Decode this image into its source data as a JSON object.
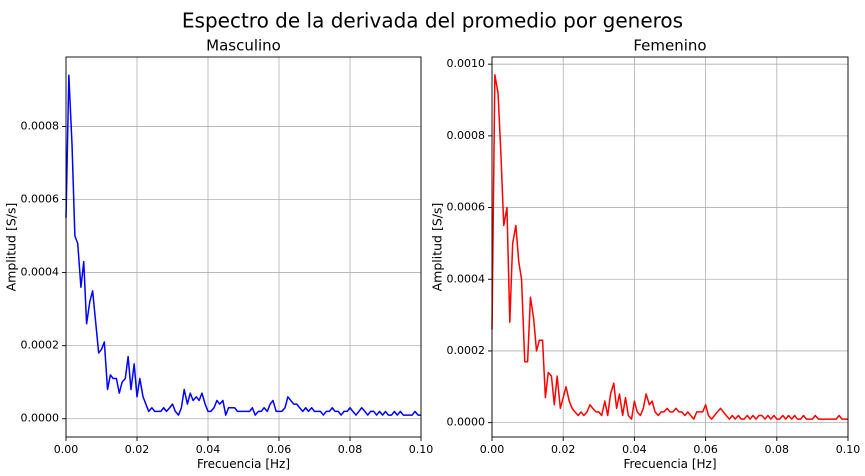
{
  "figure": {
    "title": "Espectro de la derivada del promedio por generos"
  },
  "chart_data": [
    {
      "type": "line",
      "title": "Masculino",
      "xlabel": "Frecuencia [Hz]",
      "ylabel": "Amplitud [S/s]",
      "xlim": [
        0,
        0.1
      ],
      "ylim": [
        -5e-05,
        0.00099
      ],
      "grid": true,
      "color": "#0000ff",
      "xticks": [
        0.0,
        0.02,
        0.04,
        0.06,
        0.08,
        0.1
      ],
      "xtick_labels": [
        "0.00",
        "0.02",
        "0.04",
        "0.06",
        "0.08",
        "0.10"
      ],
      "yticks": [
        0.0,
        0.0002,
        0.0004,
        0.0006,
        0.0008
      ],
      "ytick_labels": [
        "0.0000",
        "0.0002",
        "0.0004",
        "0.0006",
        "0.0008"
      ],
      "series": [
        {
          "x": [
            0.0,
            0.0008,
            0.0017,
            0.0025,
            0.0033,
            0.0042,
            0.005,
            0.0058,
            0.0067,
            0.0075,
            0.0083,
            0.0092,
            0.01,
            0.0108,
            0.0117,
            0.0125,
            0.0133,
            0.0142,
            0.015,
            0.0158,
            0.0167,
            0.0175,
            0.0183,
            0.0192,
            0.02,
            0.0208,
            0.0217,
            0.0225,
            0.0233,
            0.0242,
            0.025,
            0.0258,
            0.0267,
            0.0275,
            0.0283,
            0.0292,
            0.03,
            0.0308,
            0.0317,
            0.0325,
            0.0333,
            0.0342,
            0.035,
            0.0358,
            0.0367,
            0.0375,
            0.0383,
            0.0392,
            0.04,
            0.0408,
            0.0417,
            0.0425,
            0.0433,
            0.0442,
            0.045,
            0.0458,
            0.0467,
            0.0475,
            0.0483,
            0.0492,
            0.05,
            0.0508,
            0.0517,
            0.0525,
            0.0533,
            0.0542,
            0.055,
            0.0558,
            0.0567,
            0.0575,
            0.0583,
            0.0592,
            0.06,
            0.0608,
            0.0617,
            0.0625,
            0.0633,
            0.0642,
            0.065,
            0.0658,
            0.0667,
            0.0675,
            0.0683,
            0.0692,
            0.07,
            0.0708,
            0.0717,
            0.0725,
            0.0733,
            0.0742,
            0.075,
            0.0758,
            0.0767,
            0.0775,
            0.0783,
            0.0792,
            0.08,
            0.0808,
            0.0817,
            0.0825,
            0.0833,
            0.0842,
            0.085,
            0.0858,
            0.0867,
            0.0875,
            0.0883,
            0.0892,
            0.09,
            0.0908,
            0.0917,
            0.0925,
            0.0933,
            0.0942,
            0.095,
            0.0958,
            0.0967,
            0.0975,
            0.0983,
            0.0992,
            0.1
          ],
          "y": [
            0.00055,
            0.00094,
            0.00075,
            0.0005,
            0.00048,
            0.00036,
            0.00043,
            0.00026,
            0.00032,
            0.00035,
            0.00027,
            0.00018,
            0.00019,
            0.00021,
            8e-05,
            0.00012,
            0.00011,
            0.00011,
            7e-05,
            0.0001,
            0.00011,
            0.00017,
            8e-05,
            0.00015,
            6e-05,
            0.00011,
            6e-05,
            4e-05,
            2e-05,
            3e-05,
            2e-05,
            2e-05,
            2e-05,
            3e-05,
            2e-05,
            3e-05,
            4e-05,
            2e-05,
            1e-05,
            3e-05,
            8e-05,
            4e-05,
            7e-05,
            5e-05,
            6e-05,
            5e-05,
            7e-05,
            4e-05,
            2e-05,
            2e-05,
            3e-05,
            5e-05,
            4e-05,
            5e-05,
            1e-05,
            3e-05,
            3e-05,
            3e-05,
            2e-05,
            2e-05,
            2e-05,
            2e-05,
            2e-05,
            3e-05,
            1e-05,
            2e-05,
            2e-05,
            3e-05,
            2e-05,
            4e-05,
            5e-05,
            2e-05,
            2e-05,
            2e-05,
            3e-05,
            6e-05,
            5e-05,
            4e-05,
            4e-05,
            3e-05,
            2e-05,
            3e-05,
            2e-05,
            3e-05,
            2e-05,
            2e-05,
            2e-05,
            1e-05,
            2e-05,
            2e-05,
            3e-05,
            2e-05,
            2e-05,
            1e-05,
            2e-05,
            2e-05,
            3e-05,
            2e-05,
            1e-05,
            2e-05,
            3e-05,
            2e-05,
            1e-05,
            2e-05,
            2e-05,
            1e-05,
            2e-05,
            1e-05,
            2e-05,
            1e-05,
            1e-05,
            2e-05,
            1e-05,
            2e-05,
            1e-05,
            1e-05,
            1e-05,
            1e-05,
            2e-05,
            1e-05,
            1e-05
          ]
        }
      ]
    },
    {
      "type": "line",
      "title": "Femenino",
      "xlabel": "Frecuencia [Hz]",
      "ylabel": "Amplitud [S/s]",
      "xlim": [
        0,
        0.1
      ],
      "ylim": [
        -4e-05,
        0.00102
      ],
      "grid": true,
      "color": "#ff0000",
      "xticks": [
        0.0,
        0.02,
        0.04,
        0.06,
        0.08,
        0.1
      ],
      "xtick_labels": [
        "0.00",
        "0.02",
        "0.04",
        "0.06",
        "0.08",
        "0.10"
      ],
      "yticks": [
        0.0,
        0.0002,
        0.0004,
        0.0006,
        0.0008,
        0.001
      ],
      "ytick_labels": [
        "0.0000",
        "0.0002",
        "0.0004",
        "0.0006",
        "0.0008",
        "0.0010"
      ],
      "series": [
        {
          "x": [
            0.0,
            0.0008,
            0.0017,
            0.0025,
            0.0033,
            0.0042,
            0.005,
            0.0058,
            0.0067,
            0.0075,
            0.0083,
            0.0092,
            0.01,
            0.0108,
            0.0117,
            0.0125,
            0.0133,
            0.0142,
            0.015,
            0.0158,
            0.0167,
            0.0175,
            0.0183,
            0.0192,
            0.02,
            0.0208,
            0.0217,
            0.0225,
            0.0233,
            0.0242,
            0.025,
            0.0258,
            0.0267,
            0.0275,
            0.0283,
            0.0292,
            0.03,
            0.0308,
            0.0317,
            0.0325,
            0.0333,
            0.0342,
            0.035,
            0.0358,
            0.0367,
            0.0375,
            0.0383,
            0.0392,
            0.04,
            0.0408,
            0.0417,
            0.0425,
            0.0433,
            0.0442,
            0.045,
            0.0458,
            0.0467,
            0.0475,
            0.0483,
            0.0492,
            0.05,
            0.0508,
            0.0517,
            0.0525,
            0.0533,
            0.0542,
            0.055,
            0.0558,
            0.0567,
            0.0575,
            0.0583,
            0.0592,
            0.06,
            0.0608,
            0.0617,
            0.0625,
            0.0633,
            0.0642,
            0.065,
            0.0658,
            0.0667,
            0.0675,
            0.0683,
            0.0692,
            0.07,
            0.0708,
            0.0717,
            0.0725,
            0.0733,
            0.0742,
            0.075,
            0.0758,
            0.0767,
            0.0775,
            0.0783,
            0.0792,
            0.08,
            0.0808,
            0.0817,
            0.0825,
            0.0833,
            0.0842,
            0.085,
            0.0858,
            0.0867,
            0.0875,
            0.0883,
            0.0892,
            0.09,
            0.0908,
            0.0917,
            0.0925,
            0.0933,
            0.0942,
            0.095,
            0.0958,
            0.0967,
            0.0975,
            0.0983,
            0.0992,
            0.1
          ],
          "y": [
            0.00026,
            0.00097,
            0.00092,
            0.00075,
            0.00055,
            0.0006,
            0.00028,
            0.0005,
            0.00055,
            0.00045,
            0.0004,
            0.00017,
            0.00017,
            0.00035,
            0.00029,
            0.0002,
            0.00023,
            0.00023,
            7e-05,
            0.00014,
            0.00013,
            5e-05,
            0.00013,
            4e-05,
            7e-05,
            0.0001,
            6e-05,
            4e-05,
            3e-05,
            2e-05,
            3e-05,
            2e-05,
            3e-05,
            5e-05,
            4e-05,
            3e-05,
            3e-05,
            2e-05,
            6e-05,
            2e-05,
            8e-05,
            0.00011,
            4e-05,
            8e-05,
            2e-05,
            7e-05,
            2e-05,
            1e-05,
            6e-05,
            3e-05,
            2e-05,
            4e-05,
            8e-05,
            5e-05,
            6e-05,
            3e-05,
            2e-05,
            3e-05,
            3e-05,
            4e-05,
            3e-05,
            3e-05,
            4e-05,
            3e-05,
            3e-05,
            2e-05,
            3e-05,
            2e-05,
            1e-05,
            3e-05,
            3e-05,
            3e-05,
            5e-05,
            2e-05,
            1e-05,
            2e-05,
            3e-05,
            4e-05,
            3e-05,
            2e-05,
            1e-05,
            2e-05,
            1e-05,
            2e-05,
            1e-05,
            1e-05,
            2e-05,
            1e-05,
            2e-05,
            1e-05,
            2e-05,
            2e-05,
            1e-05,
            2e-05,
            1e-05,
            2e-05,
            1e-05,
            1e-05,
            2e-05,
            1e-05,
            2e-05,
            1e-05,
            2e-05,
            1e-05,
            1e-05,
            2e-05,
            1e-05,
            1e-05,
            1e-05,
            2e-05,
            1e-05,
            1e-05,
            1e-05,
            1e-05,
            1e-05,
            1e-05,
            1e-05,
            2e-05,
            1e-05,
            1e-05,
            1e-05
          ]
        }
      ]
    }
  ]
}
